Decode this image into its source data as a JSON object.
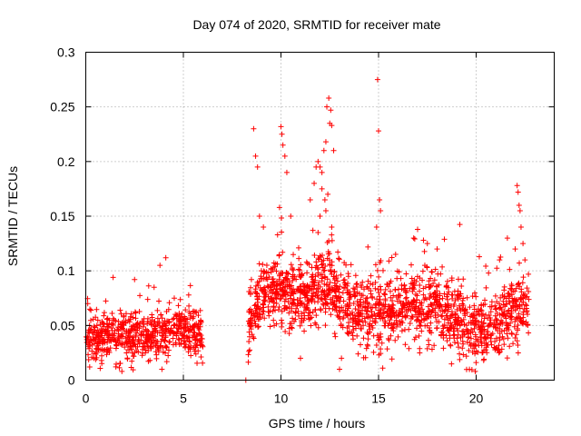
{
  "chart_data": {
    "type": "scatter",
    "title": "Day 074 of 2020, SRMTID for receiver mate",
    "xlabel": "GPS time / hours",
    "ylabel": "SRMTID / TECUs",
    "xlim": [
      0,
      24
    ],
    "ylim": [
      0,
      0.3
    ],
    "grid": true,
    "marker": "+",
    "marker_color": "#ff0000",
    "x_ticks": [
      0,
      5,
      10,
      15,
      20
    ],
    "x_tick_labels": [
      "0",
      "5",
      "10",
      "15",
      "20"
    ],
    "y_ticks": [
      0,
      0.05,
      0.1,
      0.15,
      0.2,
      0.25,
      0.3
    ],
    "y_tick_labels": [
      "0",
      "0.05",
      "0.1",
      "0.15",
      "0.2",
      "0.25",
      "0.3"
    ],
    "series": [
      {
        "name": "SRMTID",
        "segments": [
          {
            "x_start": 0.0,
            "x_end": 6.0,
            "count": 650,
            "base": [
              [
                0,
                0.037
              ],
              [
                1.5,
                0.04
              ],
              [
                3,
                0.04
              ],
              [
                4.5,
                0.046
              ],
              [
                6,
                0.042
              ]
            ],
            "spread": 0.011
          },
          {
            "x_start": 8.3,
            "x_end": 22.7,
            "count": 1650,
            "base": [
              [
                8.3,
                0.045
              ],
              [
                9,
                0.08
              ],
              [
                10,
                0.08
              ],
              [
                11,
                0.075
              ],
              [
                12,
                0.085
              ],
              [
                12.5,
                0.09
              ],
              [
                13,
                0.075
              ],
              [
                14,
                0.06
              ],
              [
                15,
                0.06
              ],
              [
                16,
                0.065
              ],
              [
                17,
                0.07
              ],
              [
                18,
                0.065
              ],
              [
                19,
                0.055
              ],
              [
                20,
                0.045
              ],
              [
                21,
                0.05
              ],
              [
                22,
                0.065
              ],
              [
                22.7,
                0.07
              ]
            ],
            "spread": 0.016
          }
        ],
        "points": [
          {
            "x": 0.1,
            "y": 0.07
          },
          {
            "x": 1.4,
            "y": 0.094
          },
          {
            "x": 2.5,
            "y": 0.092
          },
          {
            "x": 3.5,
            "y": 0.085
          },
          {
            "x": 3.8,
            "y": 0.105
          },
          {
            "x": 4.1,
            "y": 0.112
          },
          {
            "x": 3.9,
            "y": 0.01
          },
          {
            "x": 0.2,
            "y": 0.012
          },
          {
            "x": 8.2,
            "y": 0.0
          },
          {
            "x": 8.6,
            "y": 0.23
          },
          {
            "x": 8.7,
            "y": 0.205
          },
          {
            "x": 8.8,
            "y": 0.195
          },
          {
            "x": 8.9,
            "y": 0.15
          },
          {
            "x": 9.1,
            "y": 0.14
          },
          {
            "x": 10.0,
            "y": 0.232
          },
          {
            "x": 10.05,
            "y": 0.225
          },
          {
            "x": 10.1,
            "y": 0.215
          },
          {
            "x": 10.2,
            "y": 0.205
          },
          {
            "x": 10.3,
            "y": 0.19
          },
          {
            "x": 10.5,
            "y": 0.15
          },
          {
            "x": 11.5,
            "y": 0.165
          },
          {
            "x": 11.7,
            "y": 0.18
          },
          {
            "x": 11.8,
            "y": 0.195
          },
          {
            "x": 11.9,
            "y": 0.2
          },
          {
            "x": 12.0,
            "y": 0.195
          },
          {
            "x": 12.1,
            "y": 0.19
          },
          {
            "x": 12.2,
            "y": 0.21
          },
          {
            "x": 12.3,
            "y": 0.218
          },
          {
            "x": 12.35,
            "y": 0.25
          },
          {
            "x": 12.45,
            "y": 0.258
          },
          {
            "x": 12.5,
            "y": 0.235
          },
          {
            "x": 12.55,
            "y": 0.247
          },
          {
            "x": 12.6,
            "y": 0.233
          },
          {
            "x": 12.7,
            "y": 0.21
          },
          {
            "x": 12.4,
            "y": 0.17
          },
          {
            "x": 12.1,
            "y": 0.175
          },
          {
            "x": 12.25,
            "y": 0.165
          },
          {
            "x": 12.0,
            "y": 0.15
          },
          {
            "x": 11.9,
            "y": 0.135
          },
          {
            "x": 12.3,
            "y": 0.155
          },
          {
            "x": 12.6,
            "y": 0.14
          },
          {
            "x": 14.95,
            "y": 0.275
          },
          {
            "x": 15.0,
            "y": 0.228
          },
          {
            "x": 15.05,
            "y": 0.165
          },
          {
            "x": 15.1,
            "y": 0.155
          },
          {
            "x": 14.9,
            "y": 0.14
          },
          {
            "x": 16.8,
            "y": 0.13
          },
          {
            "x": 17.0,
            "y": 0.138
          },
          {
            "x": 17.3,
            "y": 0.128
          },
          {
            "x": 17.5,
            "y": 0.125
          },
          {
            "x": 18.0,
            "y": 0.12
          },
          {
            "x": 21.2,
            "y": 0.11
          },
          {
            "x": 21.6,
            "y": 0.13
          },
          {
            "x": 22.0,
            "y": 0.12
          },
          {
            "x": 22.1,
            "y": 0.178
          },
          {
            "x": 22.15,
            "y": 0.172
          },
          {
            "x": 22.2,
            "y": 0.16
          },
          {
            "x": 22.25,
            "y": 0.155
          },
          {
            "x": 22.3,
            "y": 0.14
          },
          {
            "x": 22.4,
            "y": 0.125
          },
          {
            "x": 22.5,
            "y": 0.11
          },
          {
            "x": 13.0,
            "y": 0.01
          },
          {
            "x": 13.1,
            "y": 0.02
          },
          {
            "x": 11.0,
            "y": 0.02
          }
        ]
      }
    ]
  }
}
